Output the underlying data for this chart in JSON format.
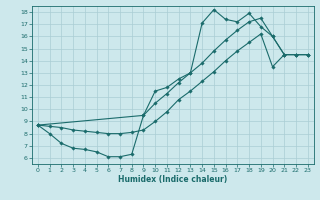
{
  "xlabel": "Humidex (Indice chaleur)",
  "bg_color": "#cde8ec",
  "grid_color": "#aacdd4",
  "line_color": "#1a6b6b",
  "xlim": [
    -0.5,
    23.5
  ],
  "ylim": [
    5.5,
    18.5
  ],
  "xticks": [
    0,
    1,
    2,
    3,
    4,
    5,
    6,
    7,
    8,
    9,
    10,
    11,
    12,
    13,
    14,
    15,
    16,
    17,
    18,
    19,
    20,
    21,
    22,
    23
  ],
  "yticks": [
    6,
    7,
    8,
    9,
    10,
    11,
    12,
    13,
    14,
    15,
    16,
    17,
    18
  ],
  "curve1_x": [
    0,
    1,
    2,
    3,
    4,
    5,
    6,
    7,
    8,
    9,
    10,
    11,
    12,
    13,
    14,
    15,
    16,
    17,
    18,
    19,
    20,
    21,
    22,
    23
  ],
  "curve1_y": [
    8.7,
    8.0,
    7.2,
    6.8,
    6.7,
    6.5,
    6.1,
    6.1,
    6.3,
    9.5,
    11.5,
    11.8,
    12.5,
    13.0,
    17.1,
    18.2,
    17.4,
    17.2,
    17.9,
    16.8,
    16.0,
    14.5,
    14.5,
    14.5
  ],
  "curve2_x": [
    0,
    1,
    2,
    3,
    4,
    5,
    6,
    7,
    8,
    9,
    10,
    11,
    12,
    13,
    14,
    15,
    16,
    17,
    18,
    19,
    20,
    21,
    22,
    23
  ],
  "curve2_y": [
    8.7,
    8.6,
    8.5,
    8.3,
    8.2,
    8.1,
    8.0,
    8.0,
    8.1,
    8.3,
    9.0,
    9.8,
    10.8,
    11.5,
    12.3,
    13.1,
    14.0,
    14.8,
    15.5,
    16.2,
    13.5,
    14.5,
    14.5,
    14.5
  ],
  "curve3_x": [
    0,
    9,
    10,
    11,
    12,
    13,
    14,
    15,
    16,
    17,
    18,
    19,
    20,
    21,
    22,
    23
  ],
  "curve3_y": [
    8.7,
    9.5,
    10.5,
    11.3,
    12.2,
    13.0,
    13.8,
    14.8,
    15.7,
    16.5,
    17.2,
    17.5,
    16.0,
    14.5,
    14.5,
    14.5
  ]
}
